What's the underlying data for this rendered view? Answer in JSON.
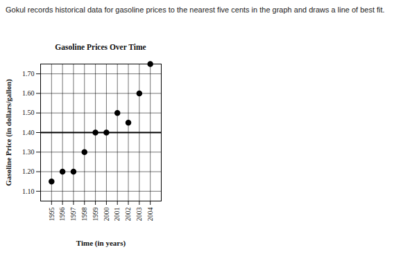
{
  "chart_data": {
    "type": "scatter",
    "caption": "Gokul records historical data for gasoline prices to the nearest five cents in the graph and draws a line of best fit.",
    "title": "Gasoline Prices Over Time",
    "x_label": "Time (in years)",
    "y_label": "Gasoline Price (in dollars/gallon)",
    "x": [
      1995,
      1996,
      1997,
      1998,
      1999,
      2000,
      2001,
      2002,
      2003,
      2004
    ],
    "values": [
      1.15,
      1.2,
      1.2,
      1.3,
      1.4,
      1.4,
      1.5,
      1.45,
      1.6,
      1.75
    ],
    "color": "#000000",
    "marker": "circle",
    "best_fit_line": {
      "x": [
        1994,
        2005
      ],
      "y": [
        1.4,
        1.4
      ]
    },
    "xlim": [
      1994,
      2005
    ],
    "xticks": [
      1995,
      1996,
      1997,
      1998,
      1999,
      2000,
      2001,
      2002,
      2003,
      2004
    ],
    "ylim": [
      1.05,
      1.75
    ],
    "yticks": [
      {
        "value": 1.1,
        "label": "1.10"
      },
      {
        "value": 1.2,
        "label": "1.20"
      },
      {
        "value": 1.3,
        "label": "1.30"
      },
      {
        "value": 1.4,
        "label": "1.40"
      },
      {
        "value": 1.5,
        "label": "1.50"
      },
      {
        "value": 1.6,
        "label": "1.60"
      },
      {
        "value": 1.7,
        "label": "1.70"
      }
    ],
    "grid": true
  }
}
